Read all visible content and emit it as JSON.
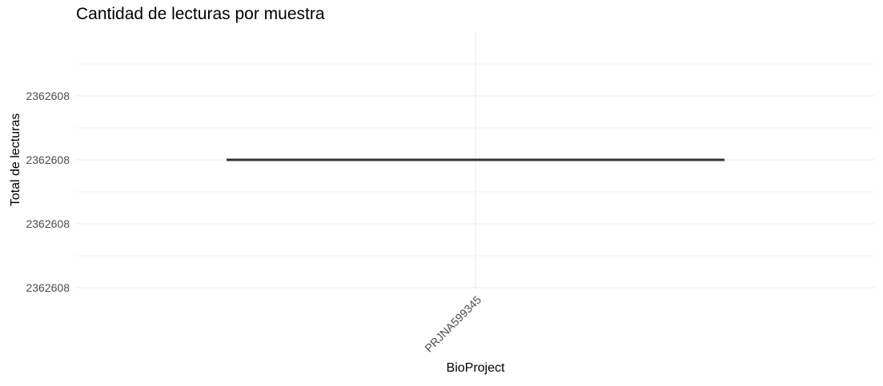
{
  "chart_data": {
    "type": "box",
    "title": "Cantidad de lecturas por muestra",
    "xlabel": "BioProject",
    "ylabel": "Total de lecturas",
    "categories": [
      "PRJNA599345"
    ],
    "y_tick_labels": [
      "2362608",
      "2362608",
      "2362608",
      "2362608"
    ],
    "series": [
      {
        "values": [
          2362608
        ]
      }
    ],
    "grid": true,
    "legend": "none"
  },
  "colors": {
    "background": "#ffffff",
    "grid": "#ebebeb",
    "box_line": "#333333",
    "tick_text": "#4d4d4d",
    "label_text": "#000000"
  }
}
